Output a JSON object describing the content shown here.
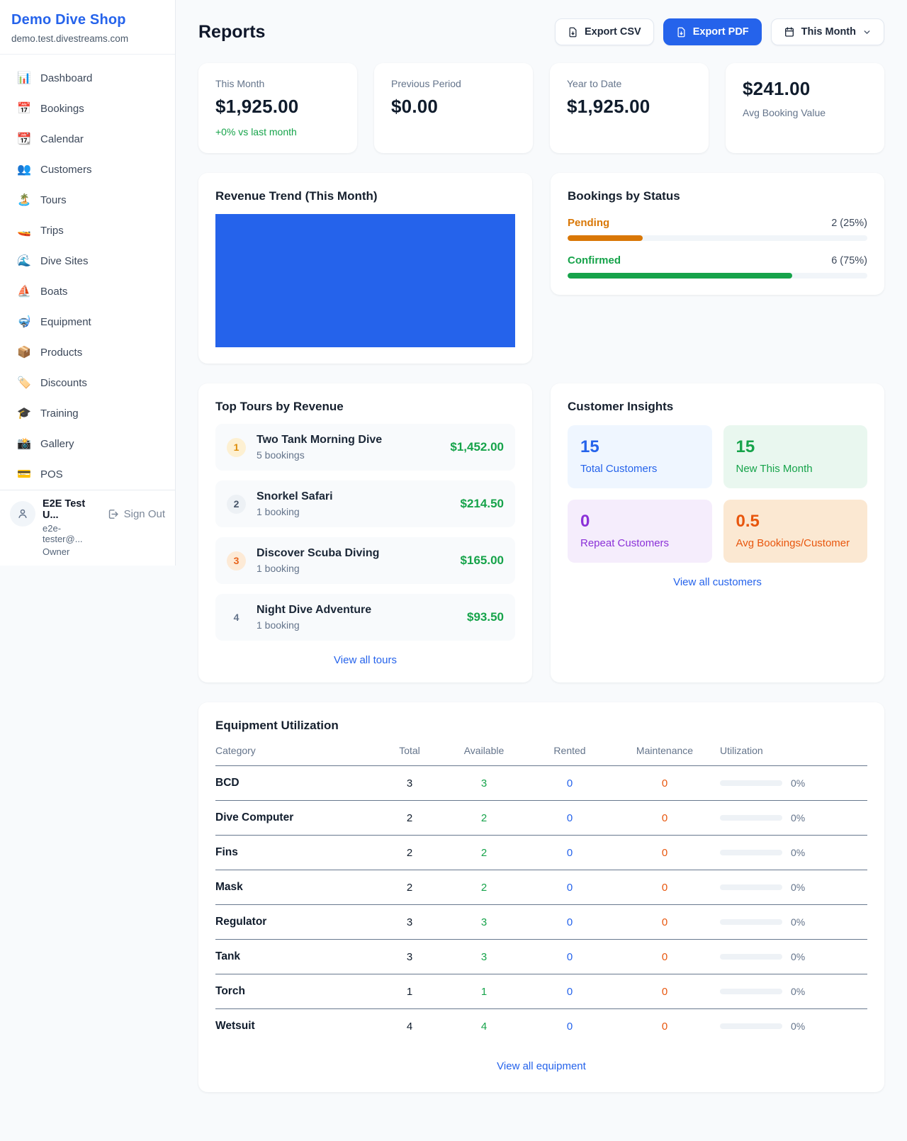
{
  "colors": {
    "brand_blue": "#2563eb",
    "chart_blue": "#2563eb",
    "pending_orange": "#d97706",
    "confirmed_green": "#16a34a",
    "revenue_green": "#16a34a",
    "maintenance_orange": "#e8560d",
    "link_blue": "#2563eb"
  },
  "sidebar": {
    "brand": {
      "name": "Demo Dive Shop",
      "domain": "demo.test.divestreams.com"
    },
    "items": [
      {
        "icon": "📊",
        "label": "Dashboard"
      },
      {
        "icon": "📅",
        "label": "Bookings"
      },
      {
        "icon": "📆",
        "label": "Calendar"
      },
      {
        "icon": "👥",
        "label": "Customers"
      },
      {
        "icon": "🏝️",
        "label": "Tours"
      },
      {
        "icon": "🚤",
        "label": "Trips"
      },
      {
        "icon": "🌊",
        "label": "Dive Sites"
      },
      {
        "icon": "⛵",
        "label": "Boats"
      },
      {
        "icon": "🤿",
        "label": "Equipment"
      },
      {
        "icon": "📦",
        "label": "Products"
      },
      {
        "icon": "🏷️",
        "label": "Discounts"
      },
      {
        "icon": "🎓",
        "label": "Training"
      },
      {
        "icon": "📸",
        "label": "Gallery"
      },
      {
        "icon": "💳",
        "label": "POS"
      }
    ],
    "user": {
      "name": "E2E Test U...",
      "email": "e2e-tester@...",
      "role": "Owner",
      "sign_out": "Sign Out"
    }
  },
  "header": {
    "title": "Reports",
    "export_csv": "Export CSV",
    "export_pdf": "Export PDF",
    "period": "This Month"
  },
  "stats": [
    {
      "label": "This Month",
      "value": "$1,925.00",
      "delta": "+0% vs last month"
    },
    {
      "label": "Previous Period",
      "value": "$0.00"
    },
    {
      "label": "Year to Date",
      "value": "$1,925.00"
    },
    {
      "label": "Avg Booking Value",
      "value": "$241.00"
    }
  ],
  "revenue_trend": {
    "title": "Revenue Trend (This Month)"
  },
  "bookings_by_status": {
    "title": "Bookings by Status",
    "rows": [
      {
        "label": "Pending",
        "count_label": "2 (25%)",
        "pct": 25
      },
      {
        "label": "Confirmed",
        "count_label": "6 (75%)",
        "pct": 75
      }
    ]
  },
  "top_tours": {
    "title": "Top Tours by Revenue",
    "rows": [
      {
        "rank": "1",
        "name": "Two Tank Morning Dive",
        "bookings": "5 bookings",
        "revenue": "$1,452.00"
      },
      {
        "rank": "2",
        "name": "Snorkel Safari",
        "bookings": "1 booking",
        "revenue": "$214.50"
      },
      {
        "rank": "3",
        "name": "Discover Scuba Diving",
        "bookings": "1 booking",
        "revenue": "$165.00"
      },
      {
        "rank": "4",
        "name": "Night Dive Adventure",
        "bookings": "1 booking",
        "revenue": "$93.50"
      }
    ],
    "view_all": "View all tours"
  },
  "customer_insights": {
    "title": "Customer Insights",
    "tiles": [
      {
        "value": "15",
        "label": "Total Customers"
      },
      {
        "value": "15",
        "label": "New This Month"
      },
      {
        "value": "0",
        "label": "Repeat Customers"
      },
      {
        "value": "0.5",
        "label": "Avg Bookings/Customer"
      }
    ],
    "view_all": "View all customers"
  },
  "equipment": {
    "title": "Equipment Utilization",
    "columns": [
      "Category",
      "Total",
      "Available",
      "Rented",
      "Maintenance",
      "Utilization"
    ],
    "rows": [
      {
        "category": "BCD",
        "total": "3",
        "available": "3",
        "rented": "0",
        "maintenance": "0",
        "utilization_pct": 0,
        "utilization_label": "0%"
      },
      {
        "category": "Dive Computer",
        "total": "2",
        "available": "2",
        "rented": "0",
        "maintenance": "0",
        "utilization_pct": 0,
        "utilization_label": "0%"
      },
      {
        "category": "Fins",
        "total": "2",
        "available": "2",
        "rented": "0",
        "maintenance": "0",
        "utilization_pct": 0,
        "utilization_label": "0%"
      },
      {
        "category": "Mask",
        "total": "2",
        "available": "2",
        "rented": "0",
        "maintenance": "0",
        "utilization_pct": 0,
        "utilization_label": "0%"
      },
      {
        "category": "Regulator",
        "total": "3",
        "available": "3",
        "rented": "0",
        "maintenance": "0",
        "utilization_pct": 0,
        "utilization_label": "0%"
      },
      {
        "category": "Tank",
        "total": "3",
        "available": "3",
        "rented": "0",
        "maintenance": "0",
        "utilization_pct": 0,
        "utilization_label": "0%"
      },
      {
        "category": "Torch",
        "total": "1",
        "available": "1",
        "rented": "0",
        "maintenance": "0",
        "utilization_pct": 0,
        "utilization_label": "0%"
      },
      {
        "category": "Wetsuit",
        "total": "4",
        "available": "4",
        "rented": "0",
        "maintenance": "0",
        "utilization_pct": 0,
        "utilization_label": "0%"
      }
    ],
    "view_all": "View all equipment"
  }
}
